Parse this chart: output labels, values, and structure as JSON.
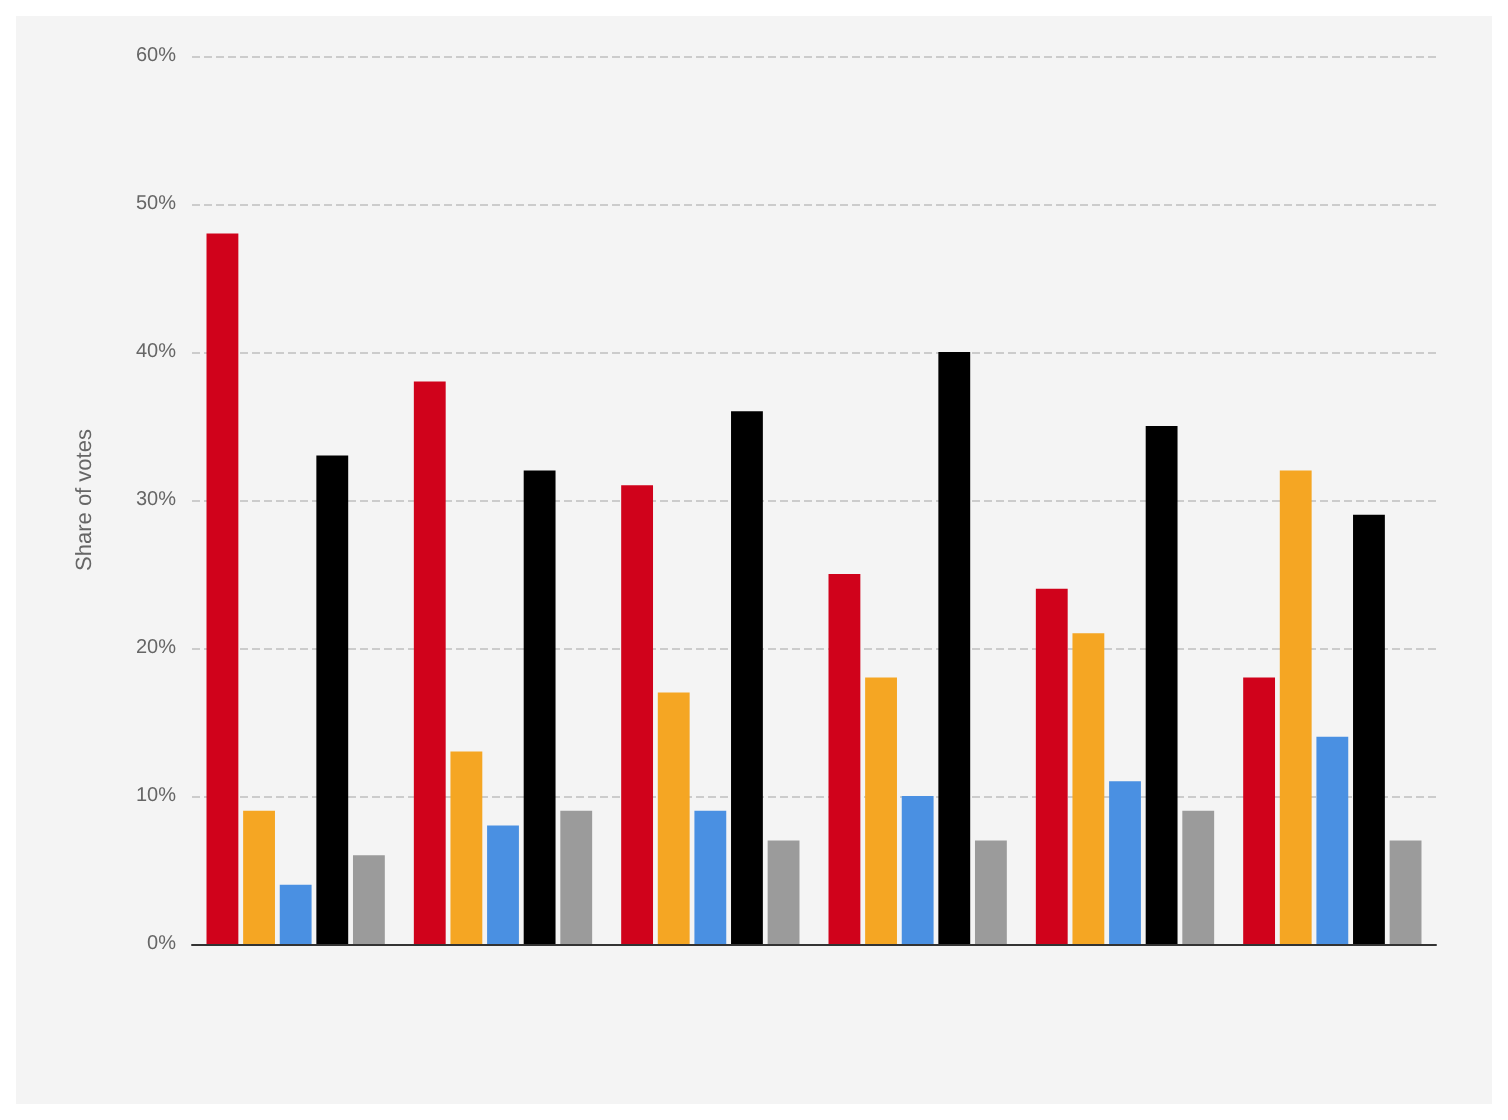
{
  "chart_data": {
    "type": "bar",
    "ylabel": "Share of votes",
    "categories": [
      null,
      null,
      null,
      null,
      null,
      null
    ],
    "series": [
      {
        "color": "#d0021b",
        "values": [
          48,
          38,
          31,
          25,
          24,
          18
        ]
      },
      {
        "color": "#f5a623",
        "values": [
          9,
          13,
          17,
          18,
          21,
          32
        ]
      },
      {
        "color": "#4a90e2",
        "values": [
          4,
          8,
          9,
          10,
          11,
          14
        ]
      },
      {
        "color": "#000000",
        "values": [
          33,
          32,
          36,
          40,
          35,
          29
        ]
      },
      {
        "color": "#9b9b9b",
        "values": [
          6,
          9,
          7,
          7,
          9,
          7
        ]
      }
    ],
    "ylim": [
      0,
      60
    ],
    "yticks": [
      {
        "value": 0,
        "label": "0%"
      },
      {
        "value": 10,
        "label": "10%"
      },
      {
        "value": 20,
        "label": "20%"
      },
      {
        "value": 30,
        "label": "30%"
      },
      {
        "value": 40,
        "label": "40%"
      },
      {
        "value": 50,
        "label": "50%"
      },
      {
        "value": 60,
        "label": "60%"
      }
    ],
    "grid": "y"
  }
}
